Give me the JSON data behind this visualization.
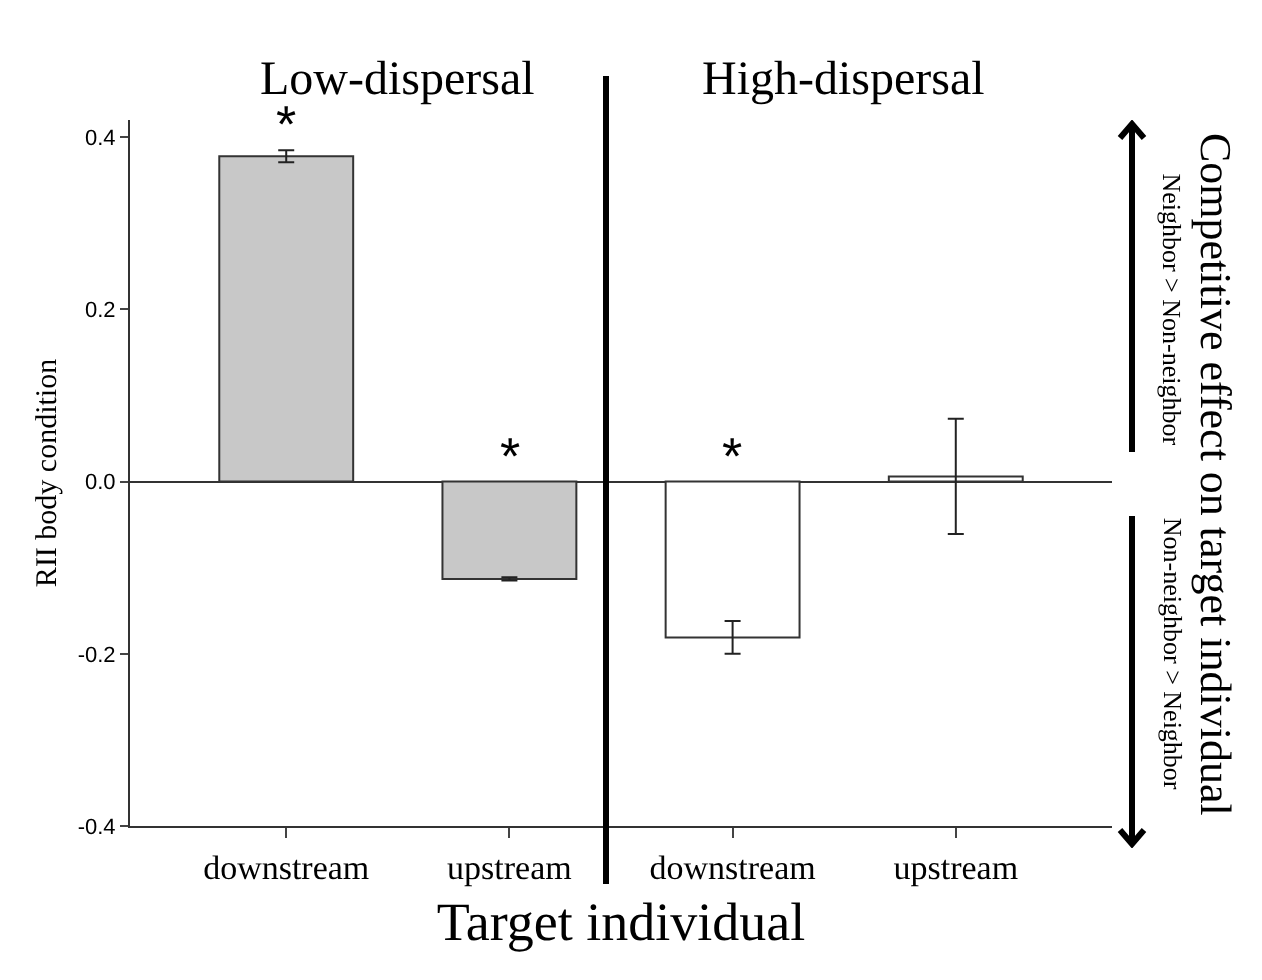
{
  "chart_data": {
    "type": "bar",
    "categories": [
      "downstream",
      "upstream",
      "downstream",
      "upstream"
    ],
    "series": [
      {
        "colors": [
          "#c8c8c8",
          "#c8c8c8",
          "#ffffff",
          "#ffffff"
        ],
        "values": [
          0.378,
          -0.113,
          -0.181,
          0.006
        ],
        "errors": [
          0.007,
          0.002,
          0.019,
          [
            -0.061,
            0.073
          ]
        ],
        "value_labels": [
          "*",
          "*",
          "*",
          null
        ]
      }
    ],
    "ylabel": "RII body condition",
    "xlabel": "Target individual",
    "yticks": [
      -0.4,
      -0.2,
      {
        "value": 0,
        "label": "0.0"
      },
      0.2,
      0.4
    ],
    "annotations": [
      "Low-dispersal",
      "High-dispersal",
      "Competitive effect on target individual",
      "Neighbor > Non-neighbor",
      "Non-neighbor > Neighbor"
    ],
    "ylim": [
      -0.4,
      0.42
    ]
  }
}
